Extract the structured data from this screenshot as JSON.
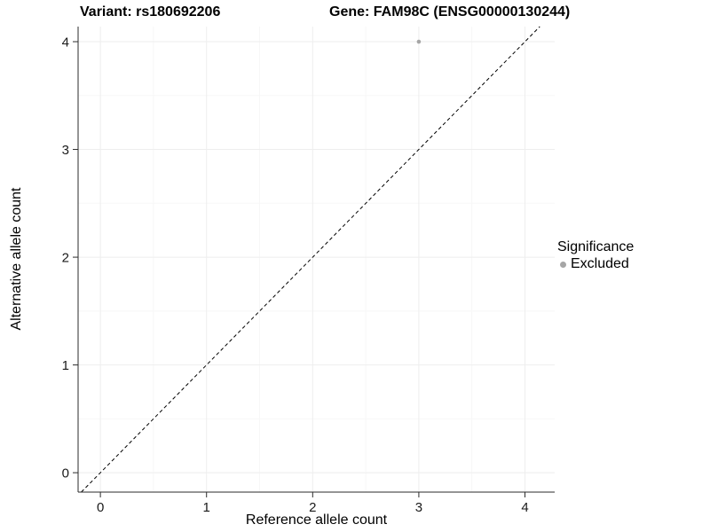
{
  "header": {
    "variant_title": "Variant: rs180692206",
    "gene_title": "Gene: FAM98C (ENSG00000130244)"
  },
  "axes": {
    "x_label": "Reference allele count",
    "y_label": "Alternative allele count"
  },
  "legend": {
    "title": "Significance",
    "items": [
      {
        "label": "Excluded",
        "color": "#a6a6a6"
      }
    ]
  },
  "chart_data": {
    "type": "scatter",
    "title_left": "Variant: rs180692206",
    "title_right": "Gene: FAM98C (ENSG00000130244)",
    "xlabel": "Reference allele count",
    "ylabel": "Alternative allele count",
    "xlim": [
      -0.21,
      4.28
    ],
    "ylim": [
      -0.18,
      4.14
    ],
    "xticks": [
      0,
      1,
      2,
      3,
      4
    ],
    "yticks": [
      0,
      1,
      2,
      3,
      4
    ],
    "grid": "major+minor faint",
    "legend_position": "right",
    "series": [
      {
        "name": "Excluded",
        "color": "#a6a6a6",
        "points": [
          {
            "x": 3,
            "y": 4
          }
        ]
      }
    ],
    "reference_line": {
      "kind": "identity y=x",
      "style": "dashed",
      "color": "#000000"
    }
  }
}
